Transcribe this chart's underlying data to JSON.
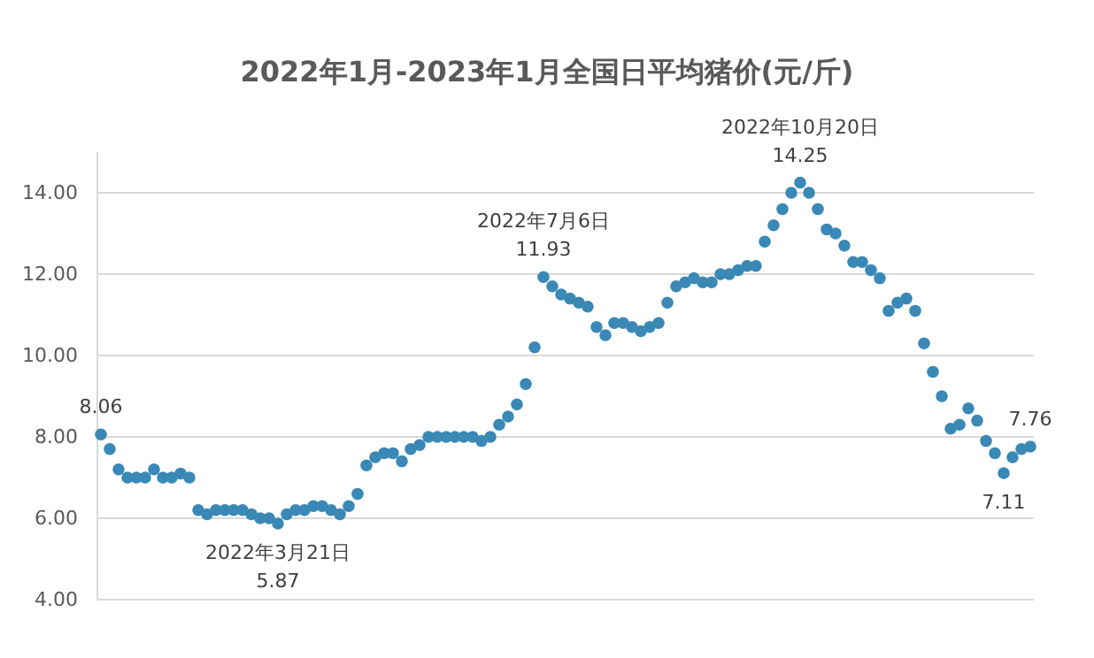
{
  "chart_data": {
    "type": "scatter",
    "title": "2022年1月-2023年1月全国日平均猪价(元/斤)",
    "categories": [
      null,
      null,
      null,
      null,
      null,
      null,
      null,
      null,
      null,
      null,
      null,
      null,
      null,
      null,
      null,
      null,
      null,
      null,
      null,
      null,
      null,
      null,
      null,
      null,
      null,
      null,
      null,
      null,
      null,
      null,
      null,
      null,
      null,
      null,
      null,
      null,
      null,
      null,
      null,
      null,
      null,
      null,
      null,
      null,
      null,
      null,
      null,
      null,
      null,
      null,
      null,
      null,
      null,
      null,
      null,
      null,
      null,
      null,
      null,
      null,
      null,
      null,
      null,
      null,
      null,
      null,
      null,
      null,
      null,
      null,
      null,
      null,
      null,
      null,
      null,
      null,
      null,
      null,
      null,
      null,
      null,
      null,
      null,
      null,
      null,
      null,
      null,
      null,
      null,
      null,
      null,
      null,
      null,
      null,
      null,
      null,
      null,
      null,
      null,
      null,
      null,
      null,
      null,
      null,
      null,
      null
    ],
    "series": [
      {
        "color": "#3a88b5",
        "values": [
          8.06,
          7.7,
          7.2,
          7.0,
          7.0,
          7.0,
          7.2,
          7.0,
          7.0,
          7.1,
          7.0,
          6.2,
          6.1,
          6.2,
          6.2,
          6.2,
          6.2,
          6.1,
          6.0,
          6.0,
          5.87,
          6.1,
          6.2,
          6.2,
          6.3,
          6.3,
          6.2,
          6.1,
          6.3,
          6.6,
          7.3,
          7.5,
          7.6,
          7.6,
          7.4,
          7.7,
          7.8,
          8.0,
          8.0,
          8.0,
          8.0,
          8.0,
          8.0,
          7.9,
          8.0,
          8.3,
          8.5,
          8.8,
          9.3,
          10.2,
          11.93,
          11.7,
          11.5,
          11.4,
          11.3,
          11.2,
          10.7,
          10.5,
          10.8,
          10.8,
          10.7,
          10.6,
          10.7,
          10.8,
          11.3,
          11.7,
          11.8,
          11.9,
          11.8,
          11.8,
          12.0,
          12.0,
          12.1,
          12.2,
          12.2,
          12.8,
          13.2,
          13.6,
          14.0,
          14.25,
          14.0,
          13.6,
          13.1,
          13.0,
          12.7,
          12.3,
          12.3,
          12.1,
          11.9,
          11.1,
          11.3,
          11.4,
          11.1,
          10.3,
          9.6,
          9.0,
          8.2,
          8.3,
          8.7,
          8.4,
          7.9,
          7.6,
          7.11,
          7.5,
          7.7,
          7.76
        ]
      }
    ],
    "ylim": [
      4,
      15
    ],
    "yticks": [
      {
        "value": 4,
        "label": "4.00"
      },
      {
        "value": 6,
        "label": "6.00"
      },
      {
        "value": 8,
        "label": "8.00"
      },
      {
        "value": 10,
        "label": "10.00"
      },
      {
        "value": 12,
        "label": "12.00"
      },
      {
        "value": 14,
        "label": "14.00"
      }
    ],
    "grid": "y",
    "marker": "circle",
    "annotations": [
      {
        "text": "8.06",
        "y": 8.06
      },
      {
        "text": "2022年3月21日",
        "y": 5.87
      },
      {
        "text": "5.87",
        "y": 5.87
      },
      {
        "text": "2022年7月6日",
        "y": 11.93
      },
      {
        "text": "11.93",
        "y": 11.93
      },
      {
        "text": "2022年10月20日",
        "y": 14.25
      },
      {
        "text": "14.25",
        "y": 14.25
      },
      {
        "text": "7.11",
        "y": 7.11
      },
      {
        "text": "7.76",
        "y": 7.76
      }
    ]
  }
}
